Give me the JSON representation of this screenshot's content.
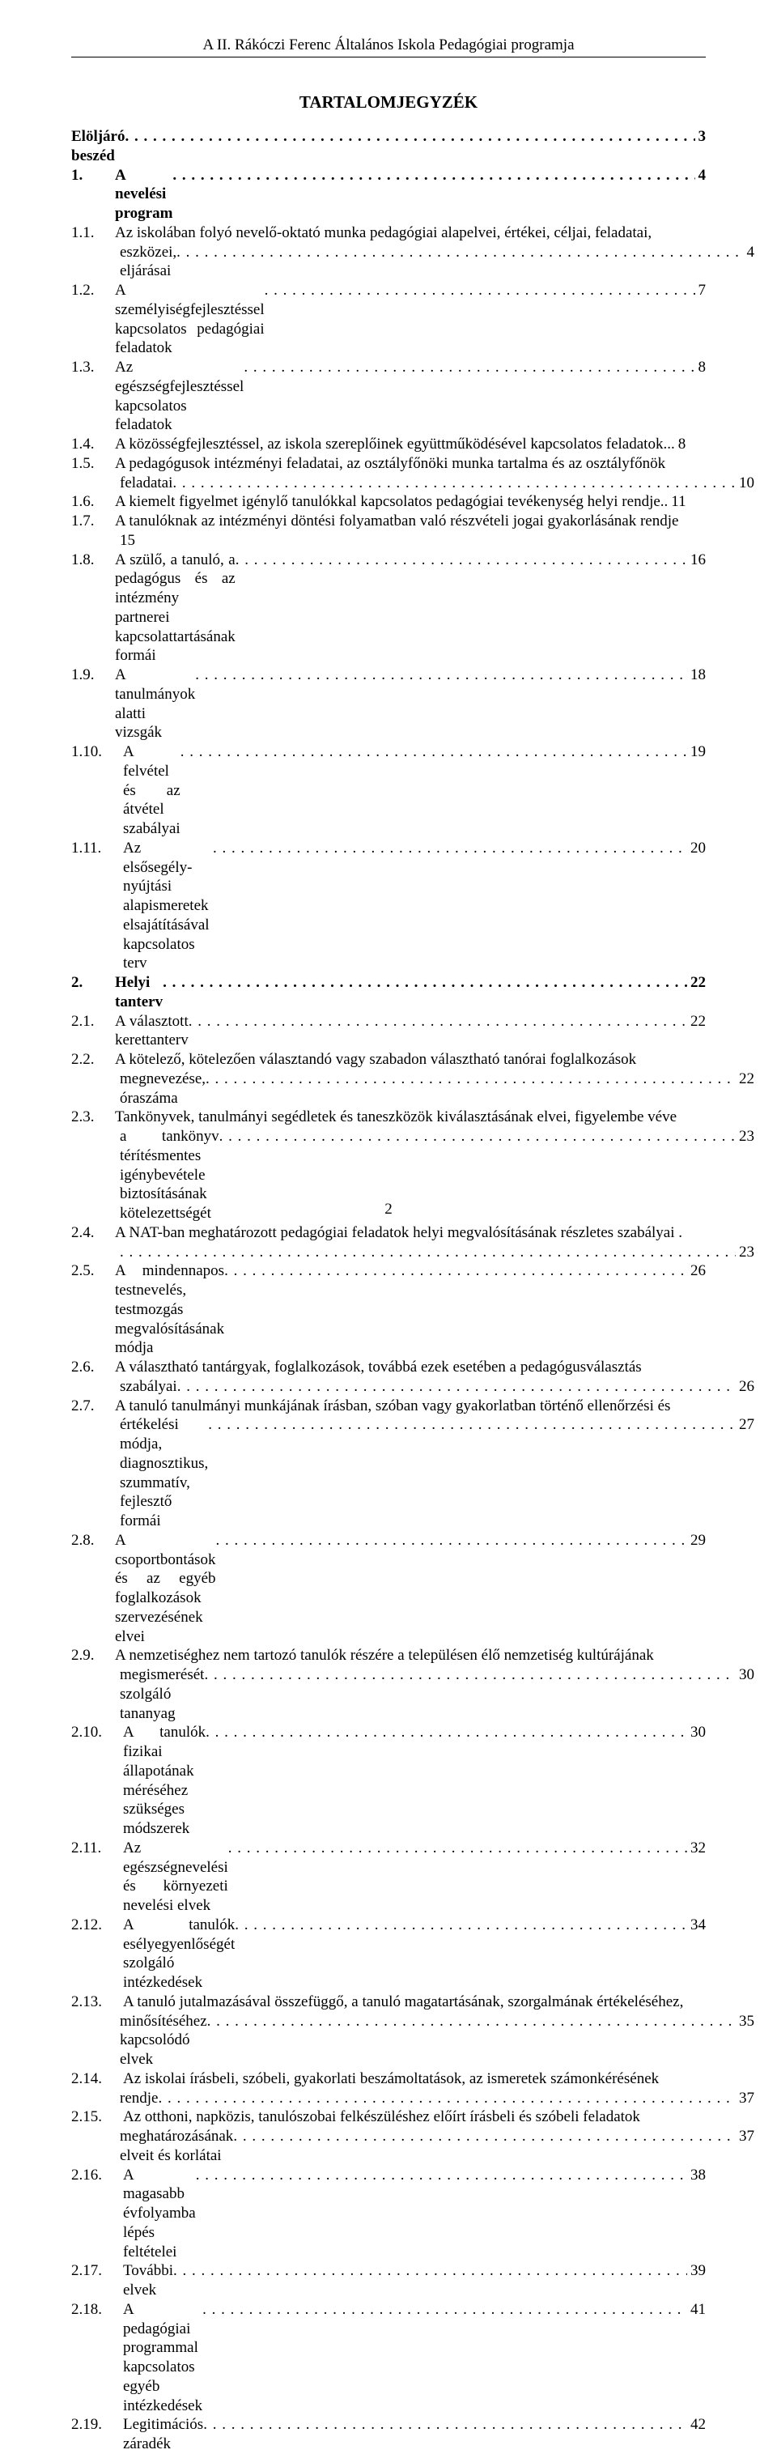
{
  "running_header": "A II. Rákóczi Ferenc Általános Iskola Pedagógiai programja",
  "title": "TARTALOMJEGYZÉK",
  "page_number": "2",
  "entries": [
    {
      "num": "",
      "text": "Elöljáró beszéd",
      "page": "3",
      "bold": true,
      "wide": false
    },
    {
      "num": "1.",
      "text": "A nevelési program",
      "page": "4",
      "bold": true,
      "wide": false
    },
    {
      "num": "1.1.",
      "text": "Az iskolában folyó nevelő-oktató munka pedagógiai alapelvei, értékei, céljai, feladatai,",
      "cont": "eszközei, eljárásai",
      "page": "4",
      "bold": false,
      "wide": false
    },
    {
      "num": "1.2.",
      "text": "A személyiségfejlesztéssel kapcsolatos pedagógiai feladatok",
      "page": "7",
      "bold": false,
      "wide": false
    },
    {
      "num": "1.3.",
      "text": "Az egészségfejlesztéssel kapcsolatos feladatok",
      "page": "8",
      "bold": false,
      "wide": false
    },
    {
      "num": "1.4.",
      "text": "A közösségfejlesztéssel, az iskola szereplőinek együttműködésével kapcsolatos feladatok",
      "page": "8",
      "bold": false,
      "wide": false,
      "tight": true
    },
    {
      "num": "1.5.",
      "text": "A pedagógusok intézményi feladatai, az osztályfőnöki munka tartalma és az osztályfőnök",
      "cont": "feladatai",
      "page": "10",
      "bold": false,
      "wide": false
    },
    {
      "num": "1.6.",
      "text": "A kiemelt figyelmet igénylő tanulókkal kapcsolatos pedagógiai tevékenység helyi rendje",
      "page": "11",
      "bold": false,
      "wide": false,
      "tight_leader": ".."
    },
    {
      "num": "1.7.",
      "text": "A tanulóknak az intézményi döntési folyamatban való részvételi jogai gyakorlásának rendje",
      "cont": "15",
      "page": "",
      "bold": false,
      "wide": false,
      "no_leader": true
    },
    {
      "num": "1.8.",
      "text": "A szülő, a tanuló, a pedagógus és az intézmény partnerei kapcsolattartásának formái",
      "page": "16",
      "bold": false,
      "wide": false
    },
    {
      "num": "1.9.",
      "text": "A tanulmányok alatti vizsgák",
      "page": "18",
      "bold": false,
      "wide": false
    },
    {
      "num": "1.10.",
      "text": "A felvétel és az átvétel szabályai",
      "page": "19",
      "bold": false,
      "wide": true
    },
    {
      "num": "1.11.",
      "text": "Az elsősegély-nyújtási alapismeretek elsajátításával kapcsolatos terv",
      "page": "20",
      "bold": false,
      "wide": true
    },
    {
      "num": "2.",
      "text": "Helyi tanterv",
      "page": "22",
      "bold": true,
      "wide": false
    },
    {
      "num": "2.1.",
      "text": "A választott kerettanterv",
      "page": "22",
      "bold": false,
      "wide": false
    },
    {
      "num": "2.2.",
      "text": "A kötelező, kötelezően választandó vagy szabadon választható tanórai foglalkozások",
      "cont": "megnevezése, óraszáma",
      "page": "22",
      "bold": false,
      "wide": false
    },
    {
      "num": "2.3.",
      "text": "Tankönyvek, tanulmányi segédletek és taneszközök kiválasztásának elvei, figyelembe véve",
      "cont": "a tankönyv térítésmentes igénybevétele biztosításának kötelezettségét",
      "page": "23",
      "bold": false,
      "wide": false
    },
    {
      "num": "2.4.",
      "text": "A NAT-ban meghatározott pedagógiai feladatok helyi megvalósításának részletes szabályai",
      "cont": "",
      "page": "23",
      "bold": false,
      "wide": false,
      "trailing_dot": true
    },
    {
      "num": "2.5.",
      "text": "A mindennapos testnevelés, testmozgás megvalósításának módja",
      "page": "26",
      "bold": false,
      "wide": false
    },
    {
      "num": "2.6.",
      "text": "A választható tantárgyak, foglalkozások, továbbá ezek esetében a pedagógusválasztás",
      "cont": "szabályai",
      "page": "26",
      "bold": false,
      "wide": false
    },
    {
      "num": "2.7.",
      "text": "A tanuló tanulmányi munkájának írásban, szóban vagy gyakorlatban történő ellenőrzési és",
      "cont": "értékelési módja, diagnosztikus, szummatív, fejlesztő formái",
      "page": "27",
      "bold": false,
      "wide": false
    },
    {
      "num": "2.8.",
      "text": "A csoportbontások és az egyéb foglalkozások szervezésének elvei",
      "page": "29",
      "bold": false,
      "wide": false
    },
    {
      "num": "2.9.",
      "text": "A nemzetiséghez nem tartozó tanulók részére a településen élő nemzetiség kultúrájának",
      "cont": "megismerését szolgáló tananyag",
      "page": "30",
      "bold": false,
      "wide": false
    },
    {
      "num": "2.10.",
      "text": "A tanulók fizikai állapotának méréséhez szükséges módszerek",
      "page": "30",
      "bold": false,
      "wide": true
    },
    {
      "num": "2.11.",
      "text": "Az egészségnevelési és környezeti nevelési elvek",
      "page": "32",
      "bold": false,
      "wide": true
    },
    {
      "num": "2.12.",
      "text": "A tanulók esélyegyenlőségét szolgáló intézkedések",
      "page": "34",
      "bold": false,
      "wide": true
    },
    {
      "num": "2.13.",
      "text": "A tanuló jutalmazásával összefüggő, a tanuló magatartásának, szorgalmának értékeléséhez,",
      "cont": "minősítéséhez kapcsolódó elvek",
      "page": "35",
      "bold": false,
      "wide": true
    },
    {
      "num": "2.14.",
      "text": "Az iskolai írásbeli, szóbeli, gyakorlati beszámoltatások, az ismeretek számonkérésének",
      "cont": "rendje",
      "page": "37",
      "bold": false,
      "wide": true
    },
    {
      "num": "2.15.",
      "text": "Az otthoni, napközis, tanulószobai felkészüléshez előírt írásbeli és szóbeli feladatok",
      "cont": "meghatározásának elveit és korlátai",
      "page": "37",
      "bold": false,
      "wide": true
    },
    {
      "num": "2.16.",
      "text": "A magasabb évfolyamba lépés feltételei",
      "page": "38",
      "bold": false,
      "wide": true
    },
    {
      "num": "2.17.",
      "text": "További elvek",
      "page": "39",
      "bold": false,
      "wide": true
    },
    {
      "num": "2.18.",
      "text": "A pedagógiai programmal kapcsolatos egyéb intézkedések",
      "page": "41",
      "bold": false,
      "wide": true
    },
    {
      "num": "2.19.",
      "text": "Legitimációs záradék",
      "page": "42",
      "bold": false,
      "wide": true
    }
  ]
}
